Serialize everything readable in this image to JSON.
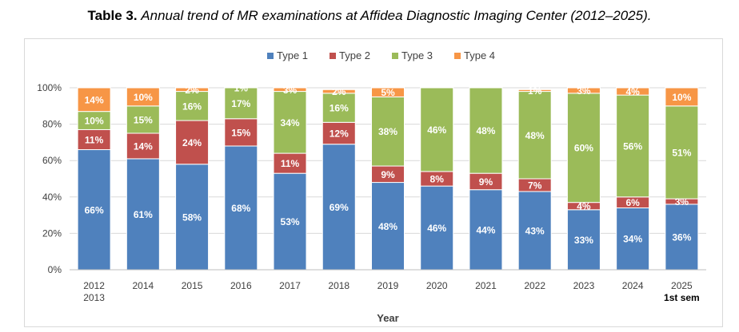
{
  "caption": {
    "label": "Table 3.",
    "text": "Annual trend of MR examinations at Affidea Diagnostic Imaging Center (2012–2025)."
  },
  "chart_data": {
    "type": "bar",
    "stacked": true,
    "categories": [
      "2012\n2013",
      "2014",
      "2015",
      "2016",
      "2017",
      "2018",
      "2019",
      "2020",
      "2021",
      "2022",
      "2023",
      "2024",
      "2025\n1st sem"
    ],
    "series": [
      {
        "name": "Type 1",
        "color": "#4f81bd",
        "values": [
          66,
          61,
          58,
          68,
          53,
          69,
          48,
          46,
          44,
          43,
          33,
          34,
          36
        ]
      },
      {
        "name": "Type 2",
        "color": "#c0504d",
        "values": [
          11,
          14,
          24,
          15,
          11,
          12,
          9,
          8,
          9,
          7,
          4,
          6,
          3
        ]
      },
      {
        "name": "Type 3",
        "color": "#9bbb59",
        "values": [
          10,
          15,
          16,
          17,
          34,
          16,
          38,
          46,
          48,
          48,
          60,
          56,
          51
        ]
      },
      {
        "name": "Type 4",
        "color": "#f79646",
        "values": [
          14,
          10,
          2,
          1,
          3,
          2,
          5,
          0,
          0,
          1,
          3,
          4,
          10
        ]
      }
    ],
    "y_ticks": [
      "0%",
      "20%",
      "40%",
      "60%",
      "80%",
      "100%"
    ],
    "ylim": [
      0,
      100
    ],
    "xlabel": "Year",
    "ylabel": "",
    "legend": "top",
    "grid": true
  }
}
